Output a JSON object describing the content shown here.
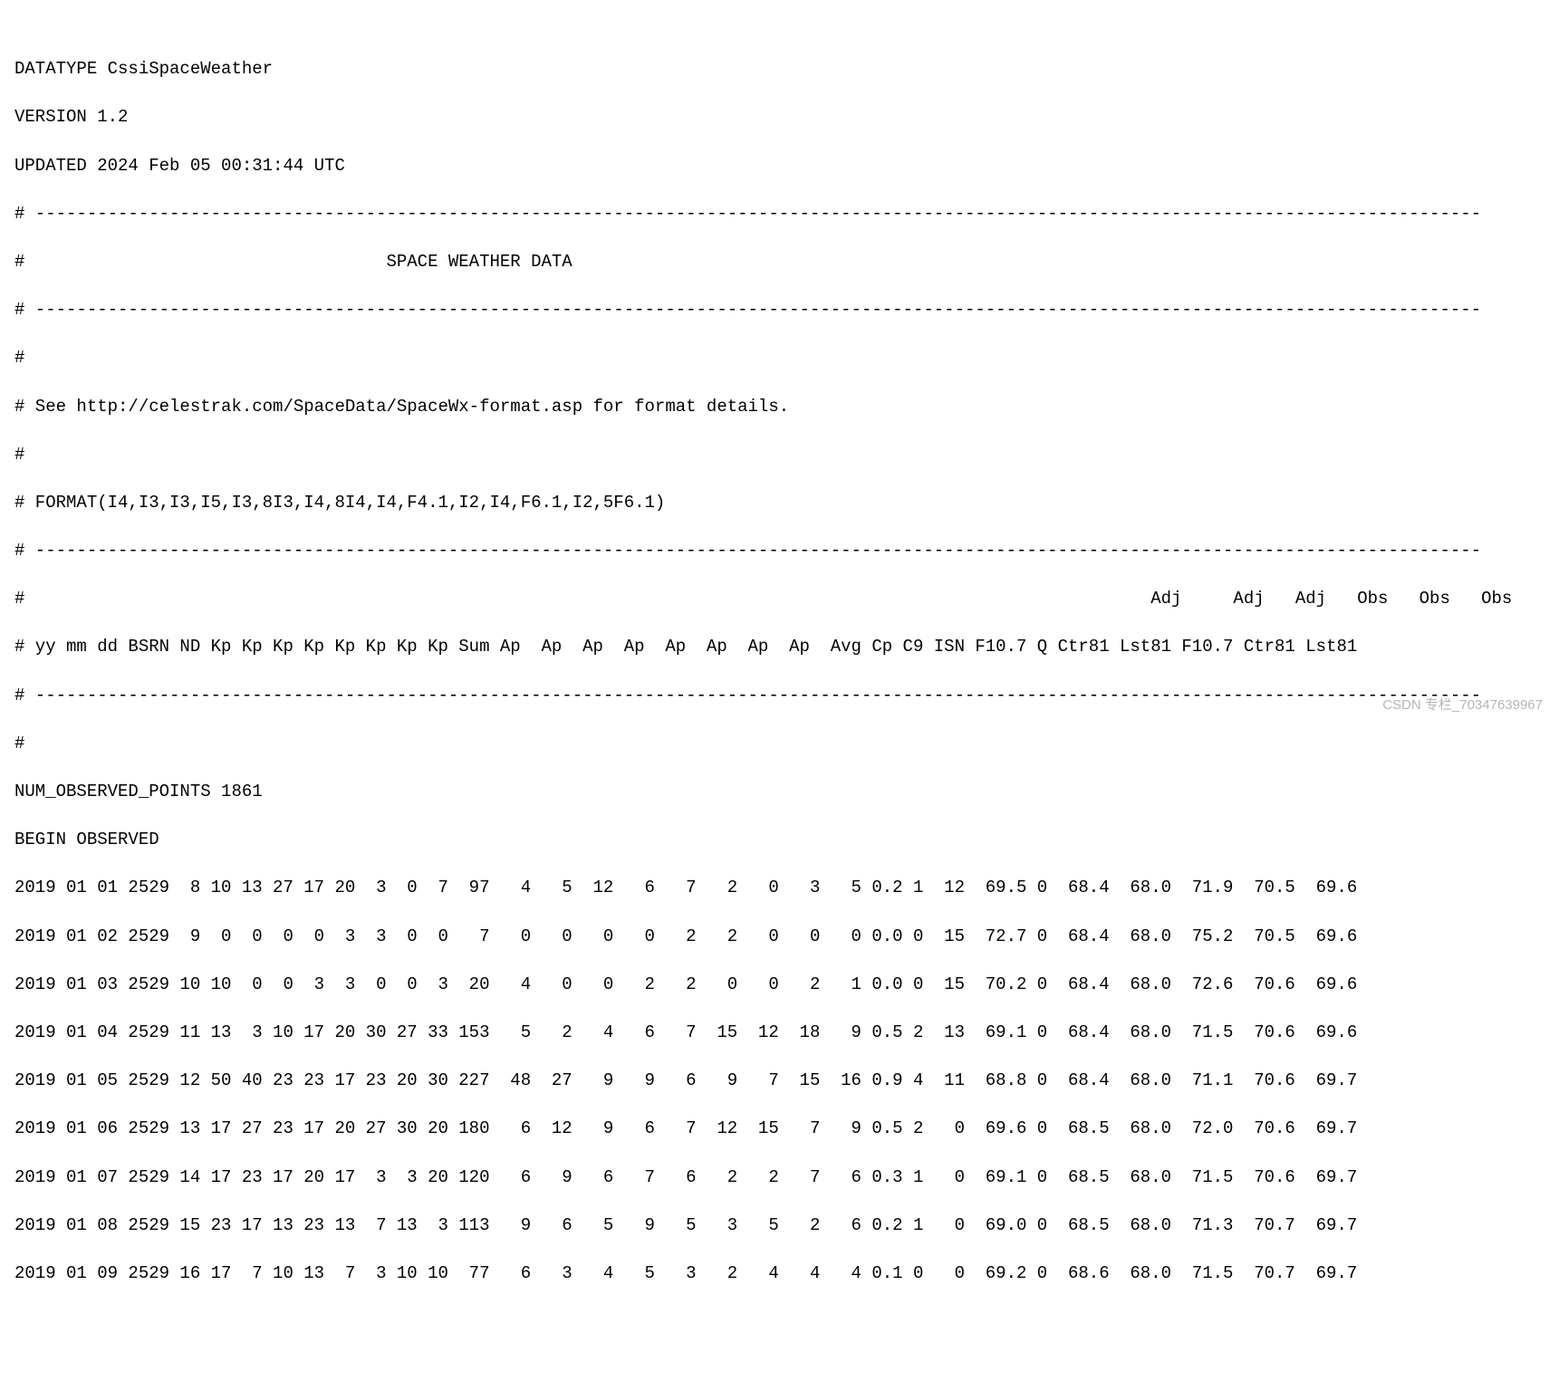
{
  "header": {
    "datatype": "DATATYPE CssiSpaceWeather",
    "version": "VERSION 1.2",
    "updated": "UPDATED 2024 Feb 05 00:31:44 UTC"
  },
  "dashes": "# --------------------------------------------------------------------------------------------------------------------------------------------",
  "title": "#                                   SPACE WEATHER DATA",
  "hash": "#",
  "see": "# See http://celestrak.com/SpaceData/SpaceWx-format.asp for format details.",
  "format": "# FORMAT(I4,I3,I3,I5,I3,8I3,I4,8I4,I4,F4.1,I2,I4,F6.1,I2,5F6.1)",
  "colhead1": "#                                                                                                             Adj     Adj   Adj   Obs   Obs   Obs",
  "colhead2": "# yy mm dd BSRN ND Kp Kp Kp Kp Kp Kp Kp Kp Sum Ap  Ap  Ap  Ap  Ap  Ap  Ap  Ap  Avg Cp C9 ISN F10.7 Q Ctr81 Lst81 F10.7 Ctr81 Lst81",
  "num_obs": "NUM_OBSERVED_POINTS 1861",
  "begin": "BEGIN OBSERVED",
  "rows": [
    "2019 01 01 2529  8 10 13 27 17 20  3  0  7  97   4   5  12   6   7   2   0   3   5 0.2 1  12  69.5 0  68.4  68.0  71.9  70.5  69.6",
    "2019 01 02 2529  9  0  0  0  0  3  3  0  0   7   0   0   0   0   2   2   0   0   0 0.0 0  15  72.7 0  68.4  68.0  75.2  70.5  69.6",
    "2019 01 03 2529 10 10  0  0  3  3  0  0  3  20   4   0   0   2   2   0   0   2   1 0.0 0  15  70.2 0  68.4  68.0  72.6  70.6  69.6",
    "2019 01 04 2529 11 13  3 10 17 20 30 27 33 153   5   2   4   6   7  15  12  18   9 0.5 2  13  69.1 0  68.4  68.0  71.5  70.6  69.6",
    "2019 01 05 2529 12 50 40 23 23 17 23 20 30 227  48  27   9   9   6   9   7  15  16 0.9 4  11  68.8 0  68.4  68.0  71.1  70.6  69.7",
    "2019 01 06 2529 13 17 27 23 17 20 27 30 20 180   6  12   9   6   7  12  15   7   9 0.5 2   0  69.6 0  68.5  68.0  72.0  70.6  69.7",
    "2019 01 07 2529 14 17 23 17 20 17  3  3 20 120   6   9   6   7   6   2   2   7   6 0.3 1   0  69.1 0  68.5  68.0  71.5  70.6  69.7",
    "2019 01 08 2529 15 23 17 13 23 13  7 13  3 113   9   6   5   9   5   3   5   2   6 0.2 1   0  69.0 0  68.5  68.0  71.3  70.7  69.7",
    "2019 01 09 2529 16 17  7 10 13  7  3 10 10  77   6   3   4   5   3   2   4   4   4 0.1 0   0  69.2 0  68.6  68.0  71.5  70.7  69.7"
  ],
  "watermark": "CSDN 专栏_70347639967"
}
